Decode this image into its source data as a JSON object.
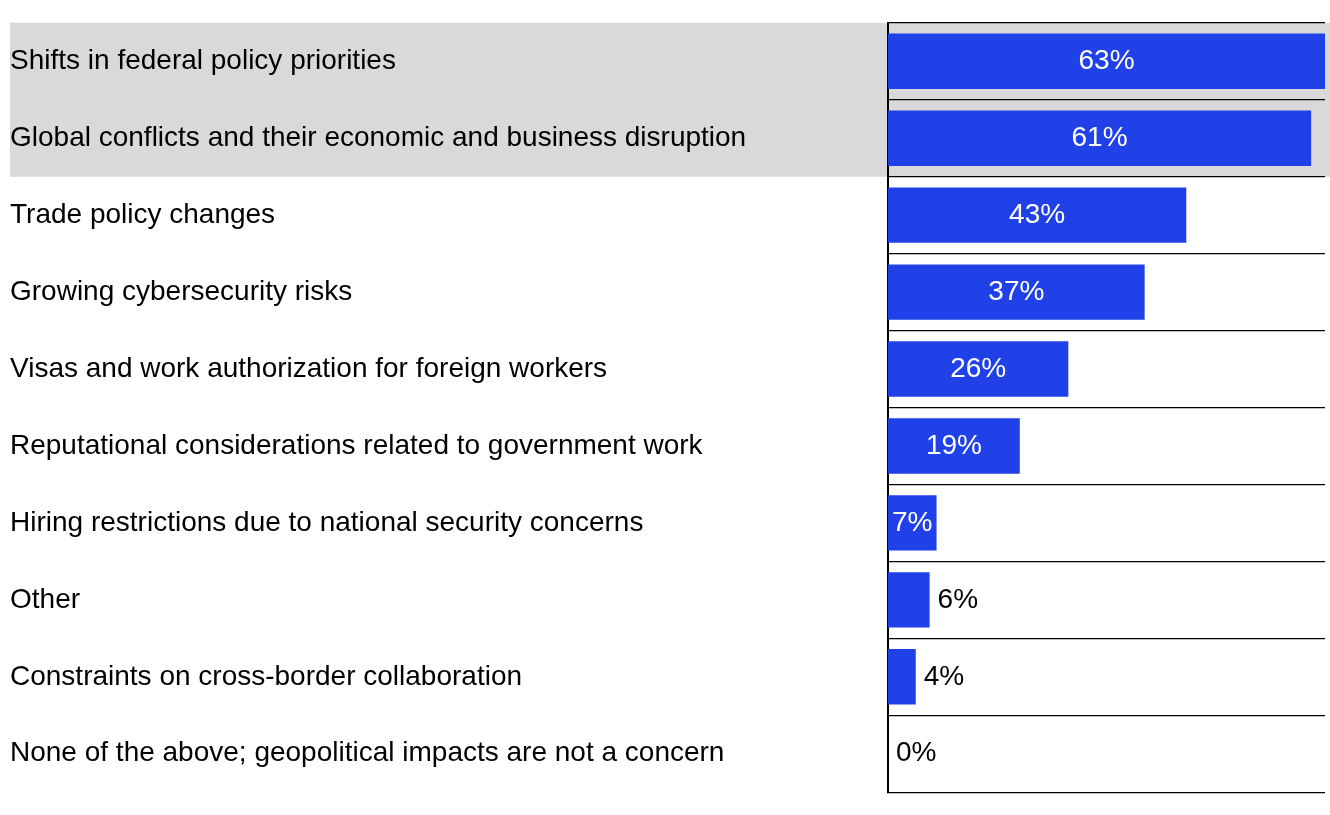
{
  "chart_data": {
    "type": "bar",
    "orientation": "horizontal",
    "categories": [
      "Shifts in federal policy priorities",
      "Global conflicts and their economic and business disruption",
      "Trade policy changes",
      "Growing cybersecurity risks",
      "Visas and work authorization for foreign workers",
      "Reputational considerations related to government work",
      "Hiring restrictions due to national security concerns",
      "Other",
      "Constraints on cross-border collaboration",
      "None of the above; geopolitical impacts are not a concern"
    ],
    "values": [
      63,
      61,
      43,
      37,
      26,
      19,
      7,
      6,
      4,
      0
    ],
    "value_labels": [
      "63%",
      "61%",
      "43%",
      "37%",
      "26%",
      "19%",
      "7%",
      "6%",
      "4%",
      "0%"
    ],
    "color": "#2141e8",
    "xlim": [
      0,
      63
    ],
    "tick_labels": "y",
    "grid": "y",
    "legend": false,
    "bands": [
      {
        "axis": "y",
        "from": "Shifts in federal policy priorities",
        "to": "Global conflicts and their economic and business disruption",
        "color": "#d9d9d9"
      }
    ]
  }
}
